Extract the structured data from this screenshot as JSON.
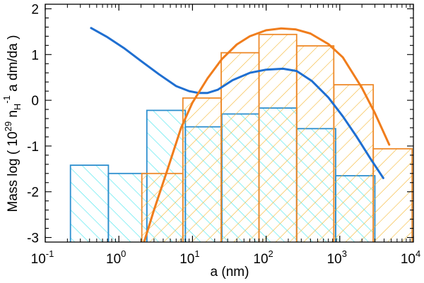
{
  "chart_data": {
    "type": "bar",
    "title": "",
    "xlabel": "a (nm)",
    "ylabel": "Mass log ( 10^29 n_H^-1 a dm/da )",
    "ylabel_parts": {
      "prefix": "Mass log ( 10",
      "exp1": "29",
      "mid": " n",
      "sub": "H",
      "exp2": "-1",
      "suffix": " a dm/da )"
    },
    "x_scale": "log",
    "xlim": [
      0.1,
      10000
    ],
    "ylim": [
      -3.1,
      2.1
    ],
    "x_ticks": [
      {
        "mantissa": "10",
        "exp": "-1",
        "value": 0.1
      },
      {
        "mantissa": "10",
        "exp": "0",
        "value": 1
      },
      {
        "mantissa": "10",
        "exp": "1",
        "value": 10
      },
      {
        "mantissa": "10",
        "exp": "2",
        "value": 100
      },
      {
        "mantissa": "10",
        "exp": "3",
        "value": 1000
      },
      {
        "mantissa": "10",
        "exp": "4",
        "value": 10000
      }
    ],
    "y_ticks": [
      {
        "label": "2",
        "value": 2
      },
      {
        "label": "1",
        "value": 1
      },
      {
        "label": "0",
        "value": 0
      },
      {
        "label": "-1",
        "value": -1
      },
      {
        "label": "-2",
        "value": -2
      },
      {
        "label": "-3",
        "value": -3
      }
    ],
    "grid": false,
    "colors": {
      "blue_line": "#1f6fd1",
      "blue_edge": "#2d8fcf",
      "cyan_hatch": "#40e6ee",
      "orange_line": "#f07d1c",
      "orange_edge": "#ee8a2a",
      "orange_hatch": "#f5b630"
    },
    "histograms": [
      {
        "style": "blue",
        "bins": [
          {
            "x0": 0.22,
            "x1": 0.72,
            "y": -1.42
          },
          {
            "x0": 0.72,
            "x1": 2.4,
            "y": -1.6
          },
          {
            "x0": 2.4,
            "x1": 8.0,
            "y": -0.22
          },
          {
            "x0": 8.0,
            "x1": 25,
            "y": -0.58
          },
          {
            "x0": 25,
            "x1": 80,
            "y": -0.3
          },
          {
            "x0": 80,
            "x1": 260,
            "y": -0.17
          },
          {
            "x0": 260,
            "x1": 880,
            "y": -0.62
          },
          {
            "x0": 880,
            "x1": 3000,
            "y": -1.65
          }
        ]
      },
      {
        "style": "orange",
        "bins": [
          {
            "x0": 2.05,
            "x1": 7.4,
            "y": -1.6
          },
          {
            "x0": 7.4,
            "x1": 24.5,
            "y": 0.05
          },
          {
            "x0": 24.5,
            "x1": 80,
            "y": 1.04
          },
          {
            "x0": 80,
            "x1": 260,
            "y": 1.44
          },
          {
            "x0": 260,
            "x1": 830,
            "y": 1.19
          },
          {
            "x0": 830,
            "x1": 2850,
            "y": 0.34
          },
          {
            "x0": 2850,
            "x1": 9600,
            "y": -1.06
          }
        ]
      }
    ],
    "series": [
      {
        "style": "blue",
        "x": [
          0.42,
          0.7,
          1.2,
          2.0,
          3.5,
          6.0,
          9.0,
          12.0,
          16.0,
          22.0,
          35.0,
          60.0,
          100.0,
          170.0,
          260.0,
          420.0,
          700.0,
          1100.0,
          1700.0,
          2600.0,
          3900.0
        ],
        "y": [
          1.58,
          1.38,
          1.13,
          0.86,
          0.57,
          0.31,
          0.2,
          0.16,
          0.16,
          0.23,
          0.44,
          0.6,
          0.67,
          0.69,
          0.64,
          0.42,
          0.06,
          -0.35,
          -0.8,
          -1.27,
          -1.7
        ]
      },
      {
        "style": "orange",
        "x": [
          2.2,
          3.0,
          4.5,
          7.0,
          10.0,
          16.0,
          25.0,
          40.0,
          60.0,
          100.0,
          160.0,
          250.0,
          400.0,
          700.0,
          1100.0,
          2000.0,
          3000.0,
          4700.0
        ],
        "y": [
          -3.1,
          -2.4,
          -1.55,
          -0.6,
          -0.05,
          0.48,
          0.9,
          1.22,
          1.4,
          1.53,
          1.57,
          1.55,
          1.46,
          1.23,
          0.94,
          0.27,
          -0.28,
          -0.97
        ]
      }
    ]
  }
}
